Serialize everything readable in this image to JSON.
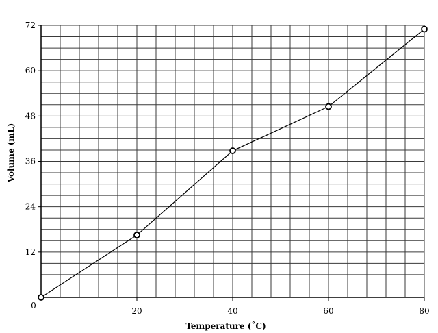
{
  "chart_data": {
    "type": "line",
    "title": "",
    "xlabel": "Temperature (˚C)",
    "ylabel": "Volume (mL)",
    "xlim": [
      0,
      80
    ],
    "ylim": [
      0,
      72
    ],
    "x_ticks": [
      20,
      40,
      60,
      80
    ],
    "y_ticks": [
      0,
      12,
      24,
      36,
      48,
      60,
      72
    ],
    "grid": true,
    "x_minor_step": 4,
    "y_minor_step": 3,
    "series": [
      {
        "x": [
          0,
          20,
          40,
          60,
          80
        ],
        "y": [
          0,
          16.5,
          38.8,
          50.5,
          71
        ],
        "marker": "open-circle",
        "color": "#000000"
      }
    ]
  }
}
